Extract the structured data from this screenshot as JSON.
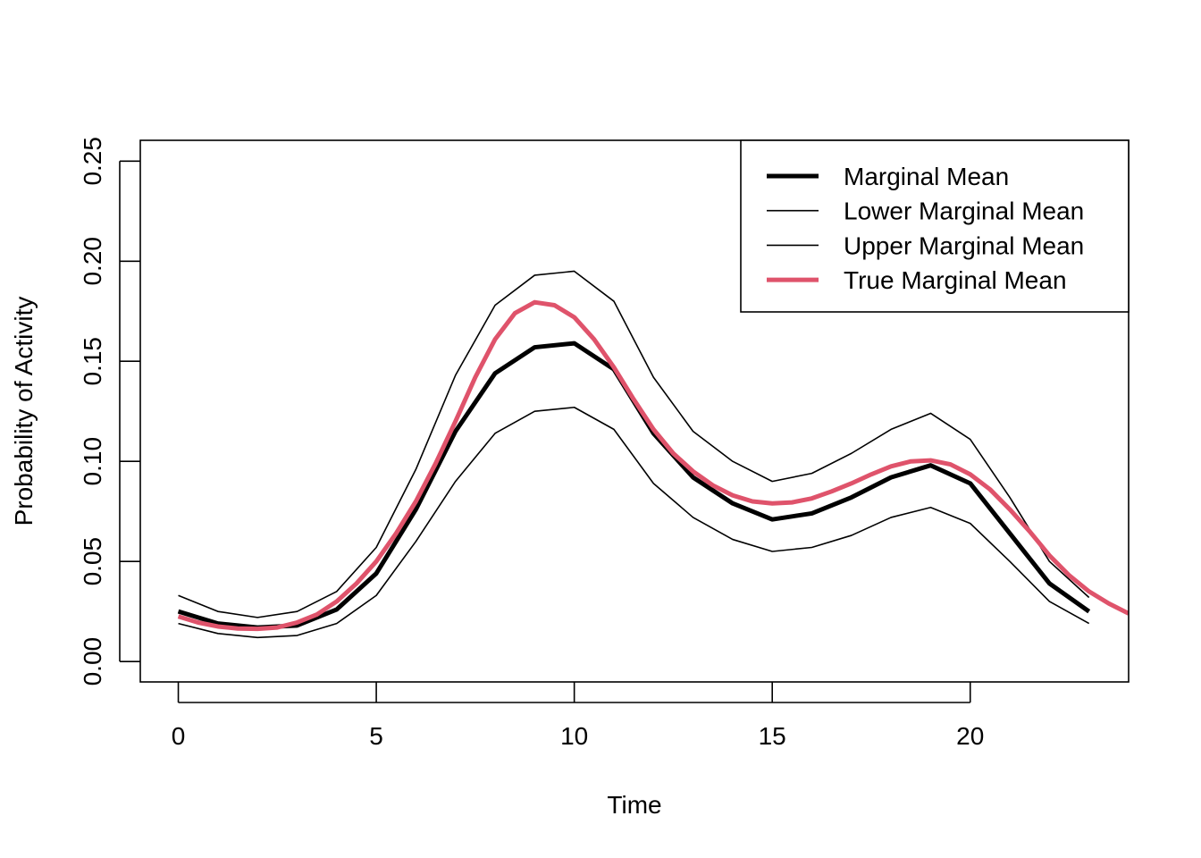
{
  "chart_data": {
    "type": "line",
    "title": "",
    "xlabel": "Time",
    "ylabel": "Probability of Activity",
    "xlim": [
      -0.96,
      24
    ],
    "ylim": [
      -0.0102,
      0.2604
    ],
    "x_ticks": [
      0,
      5,
      10,
      15,
      20
    ],
    "x_tick_labels": [
      "0",
      "5",
      "10",
      "15",
      "20"
    ],
    "y_ticks": [
      0.0,
      0.05,
      0.1,
      0.15,
      0.2,
      0.25
    ],
    "y_tick_labels": [
      "0.00",
      "0.05",
      "0.10",
      "0.15",
      "0.20",
      "0.25"
    ],
    "grid": false,
    "legend_position": "top-right",
    "series": [
      {
        "name": "Marginal Mean",
        "color": "#000000",
        "style": "thick",
        "x": [
          0,
          1,
          2,
          3,
          4,
          5,
          6,
          7,
          8,
          9,
          10,
          11,
          12,
          13,
          14,
          15,
          16,
          17,
          18,
          19,
          20,
          21,
          22,
          23
        ],
        "values": [
          0.025,
          0.019,
          0.017,
          0.018,
          0.026,
          0.044,
          0.076,
          0.115,
          0.144,
          0.157,
          0.159,
          0.146,
          0.114,
          0.092,
          0.079,
          0.071,
          0.074,
          0.082,
          0.092,
          0.098,
          0.089,
          0.064,
          0.039,
          0.025
        ]
      },
      {
        "name": "Lower Marginal Mean",
        "color": "#000000",
        "style": "thin",
        "x": [
          0,
          1,
          2,
          3,
          4,
          5,
          6,
          7,
          8,
          9,
          10,
          11,
          12,
          13,
          14,
          15,
          16,
          17,
          18,
          19,
          20,
          21,
          22,
          23
        ],
        "values": [
          0.019,
          0.014,
          0.012,
          0.013,
          0.019,
          0.033,
          0.06,
          0.09,
          0.114,
          0.125,
          0.127,
          0.116,
          0.089,
          0.072,
          0.061,
          0.055,
          0.057,
          0.063,
          0.072,
          0.077,
          0.069,
          0.05,
          0.03,
          0.019
        ]
      },
      {
        "name": "Upper Marginal Mean",
        "color": "#000000",
        "style": "thin",
        "x": [
          0,
          1,
          2,
          3,
          4,
          5,
          6,
          7,
          8,
          9,
          10,
          11,
          12,
          13,
          14,
          15,
          16,
          17,
          18,
          19,
          20,
          21,
          22,
          23
        ],
        "values": [
          0.033,
          0.025,
          0.022,
          0.025,
          0.035,
          0.057,
          0.096,
          0.143,
          0.178,
          0.193,
          0.195,
          0.18,
          0.142,
          0.115,
          0.1,
          0.09,
          0.094,
          0.104,
          0.116,
          0.124,
          0.111,
          0.082,
          0.05,
          0.032
        ]
      },
      {
        "name": "True Marginal Mean",
        "color": "#DF536B",
        "style": "thick",
        "x": [
          0,
          0.5,
          1,
          1.5,
          2,
          2.5,
          3,
          3.5,
          4,
          4.5,
          5,
          5.5,
          6,
          6.5,
          7,
          7.5,
          8,
          8.5,
          9,
          9.5,
          10,
          10.5,
          11,
          11.5,
          12,
          12.5,
          13,
          13.5,
          14,
          14.5,
          15,
          15.5,
          16,
          16.5,
          17,
          17.5,
          18,
          18.5,
          19,
          19.5,
          20,
          20.5,
          21,
          21.5,
          22,
          22.5,
          23,
          23.5,
          24
        ],
        "values": [
          0.0225,
          0.0195,
          0.0175,
          0.0165,
          0.0163,
          0.017,
          0.0195,
          0.0235,
          0.03,
          0.039,
          0.05,
          0.064,
          0.08,
          0.099,
          0.12,
          0.142,
          0.161,
          0.174,
          0.1795,
          0.178,
          0.172,
          0.161,
          0.147,
          0.131,
          0.116,
          0.104,
          0.095,
          0.088,
          0.083,
          0.08,
          0.079,
          0.0795,
          0.0815,
          0.085,
          0.089,
          0.0935,
          0.0975,
          0.1,
          0.1005,
          0.0985,
          0.0935,
          0.086,
          0.076,
          0.065,
          0.053,
          0.043,
          0.035,
          0.029,
          0.024
        ]
      }
    ]
  }
}
